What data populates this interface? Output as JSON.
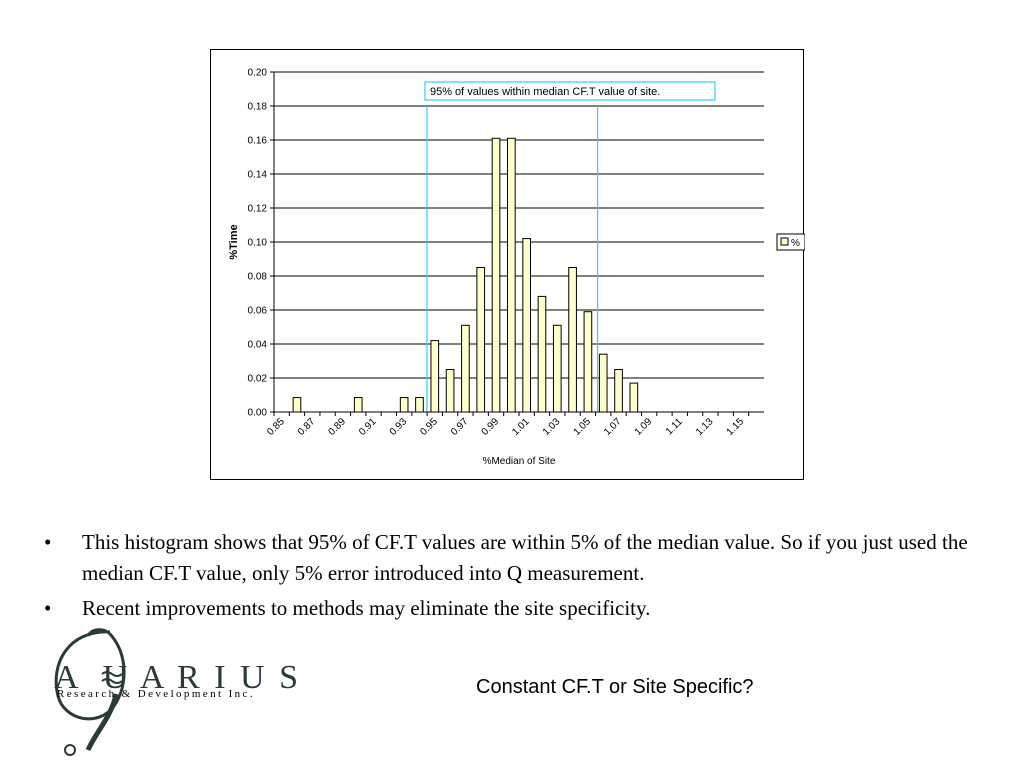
{
  "chart_data": {
    "type": "bar",
    "xlabel": "%Median of Site",
    "ylabel": "%Time",
    "ylim": [
      0,
      0.2
    ],
    "yticks": [
      "0.00",
      "0.02",
      "0.04",
      "0.06",
      "0.08",
      "0.10",
      "0.12",
      "0.14",
      "0.16",
      "0.18",
      "0.20"
    ],
    "categories": [
      "0.85",
      "0.86",
      "0.87",
      "0.88",
      "0.89",
      "0.90",
      "0.91",
      "0.92",
      "0.93",
      "0.94",
      "0.95",
      "0.96",
      "0.97",
      "0.98",
      "0.99",
      "1.00",
      "1.01",
      "1.02",
      "1.03",
      "1.04",
      "1.05",
      "1.06",
      "1.07",
      "1.08",
      "1.09",
      "1.10",
      "1.11",
      "1.12",
      "1.13",
      "1.14",
      "1.15",
      "1.16"
    ],
    "tick_labels": [
      "0.85",
      "",
      "0.87",
      "",
      "0.89",
      "",
      "0.91",
      "",
      "0.93",
      "",
      "0.95",
      "",
      "0.97",
      "",
      "0.99",
      "",
      "1.01",
      "",
      "1.03",
      "",
      "1.05",
      "",
      "1.07",
      "",
      "1.09",
      "",
      "1.11",
      "",
      "1.13",
      "",
      "1.15",
      ""
    ],
    "series": [
      {
        "name": "%",
        "color": "#ffffcc",
        "values": [
          0,
          0.0085,
          0,
          0,
          0,
          0.0085,
          0,
          0,
          0.0085,
          0.0085,
          0.042,
          0.025,
          0.051,
          0.085,
          0.161,
          0.161,
          0.102,
          0.068,
          0.051,
          0.085,
          0.059,
          0.034,
          0.025,
          0.017,
          0,
          0,
          0,
          0,
          0,
          0,
          0,
          0
        ]
      }
    ],
    "annotation": {
      "text": "95% of values within median CF.T value of site.",
      "x_start": "0.95",
      "x_end": "1.05",
      "color": "#33ccff"
    },
    "legend": {
      "position": "right",
      "entries": [
        "%"
      ]
    },
    "grid": true
  },
  "bullets": [
    "This histogram shows that 95% of CF.T values are within 5% of the median value.  So if you just used the median CF.T value, only 5% error introduced into Q measurement.",
    "Recent improvements to methods may eliminate the site specificity."
  ],
  "logo": {
    "letters": "A  U A R I U S",
    "sub": "Research & Development Inc.",
    "color": "#2a3a35"
  },
  "slide_title": "Constant CF.T or Site Specific?"
}
